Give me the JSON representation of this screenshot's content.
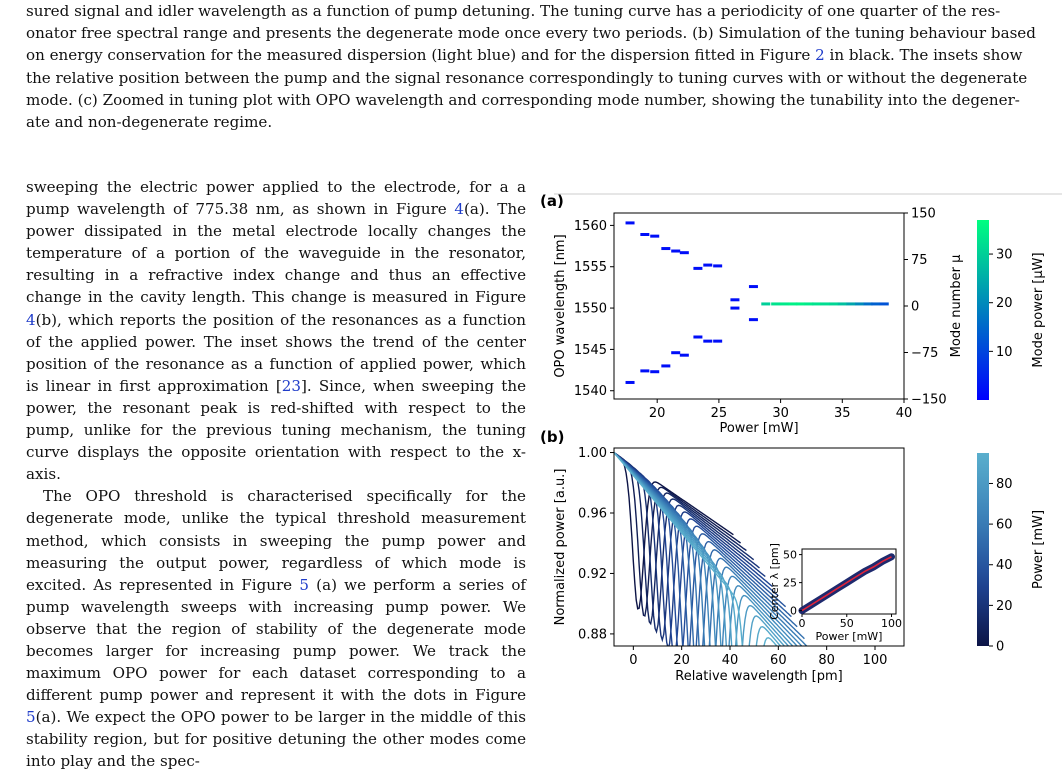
{
  "caption": {
    "line1": "sured signal and idler wavelength as a function of pump detuning. The tuning curve has a periodicity of one quarter of the res-",
    "line2": "onator free spectral range and presents the degenerate mode once every two periods. (b) Simulation of the tuning behaviour based",
    "line3_pre": "on energy conservation for the measured dispersion (light blue) and for the dispersion fitted in Figure ",
    "line3_ref": "2",
    "line3_post": " in black. The insets show",
    "line4": "the relative position between the pump and the signal resonance correspondingly to tuning curves with or without the degenerate",
    "line5": "mode. (c) Zoomed in tuning plot with OPO wavelength and corresponding mode number, showing the tunability into the degener-",
    "line6": "ate and non-degenerate regime."
  },
  "body": {
    "p1_a": "sweeping the electric power applied to the electrode, for a a pump wavelength of 775.38 nm, as shown in Figure ",
    "p1_ref1": "4",
    "p1_b": "(a). The power dissipated in the metal electrode locally changes the temperature of a portion of the waveguide in the resonator, resulting in a refractive index change and thus an effective change in the cavity length. This change is measured in Figure ",
    "p1_ref2": "4",
    "p1_c": "(b), which reports the position of the resonances as a function of the applied power. The inset shows the trend of the center position of the resonance as a function of applied power, which is linear in first approximation [",
    "p1_ref3": "23",
    "p1_d": "]. Since, when sweeping the power, the resonant peak is red-shifted with respect to the pump, unlike for the previous tuning mechanism, the tuning curve displays the opposite orientation with respect to the x-axis.",
    "p2_a": "The OPO threshold is characterised specifically for the degenerate mode, unlike the typical threshold measurement method, which consists in sweeping the pump power and measuring the output power, regardless of which mode is excited. As represented in Figure ",
    "p2_ref1": "5",
    "p2_b": " (a) we perform a series of pump wavelength sweeps with increasing pump power. We observe that the region of stability of the degenerate mode becomes larger for increasing pump power. We track the maximum OPO power for each dataset corresponding to a different pump power and represent it with the dots in Figure ",
    "p2_ref2": "5",
    "p2_c": "(a). We expect the OPO power to be larger in the middle of this stability region, but for positive detuning the other modes come into play and the spec-"
  },
  "figure": {
    "colors": {
      "axis": "#000000",
      "ref": "#1f3cc9"
    },
    "panel_a": {
      "label": "(a)",
      "chart_data": {
        "type": "scatter",
        "xlabel": "Power [mW]",
        "ylabel": "OPO wavelength [nm]",
        "y2label": "Mode number μ",
        "colorbar_label": "Mode power [μW]",
        "xlim": [
          16.5,
          40
        ],
        "ylim": [
          1539,
          1561.5
        ],
        "y2lim": [
          -150,
          150
        ],
        "xticks": [
          "20",
          "25",
          "30",
          "35",
          "40"
        ],
        "yticks": [
          "1540",
          "1545",
          "1550",
          "1555",
          "1560"
        ],
        "y2ticks": [
          "150",
          "75",
          "0",
          "−75",
          "−150"
        ],
        "colorbar_ticks": [
          "10",
          "20",
          "30"
        ],
        "colorbar_range": [
          0,
          37
        ],
        "series": [
          {
            "x": [
              17.8,
              19.0,
              19.8,
              20.7,
              21.5,
              22.2,
              23.3,
              24.1,
              24.9,
              26.3,
              27.8
            ],
            "y": [
              1560.3,
              1558.9,
              1558.7,
              1557.2,
              1556.9,
              1556.7,
              1554.8,
              1555.2,
              1555.1,
              1551.0,
              1552.6
            ],
            "c": 2
          },
          {
            "x": [
              17.8,
              19.0,
              19.8,
              20.7,
              21.5,
              22.2,
              23.3,
              24.1,
              24.9,
              26.3,
              27.8
            ],
            "y": [
              1541.0,
              1542.4,
              1542.3,
              1543.0,
              1544.6,
              1544.3,
              1546.5,
              1546.0,
              1546.0,
              1550.0,
              1548.6
            ],
            "c": 2
          },
          {
            "x": [
              28.8,
              29.6,
              30.3,
              31.0,
              31.6,
              32.3,
              32.9,
              33.6,
              34.3,
              35.0,
              35.7,
              36.4,
              37.1,
              37.7,
              38.4
            ],
            "y": [
              1550.5,
              1550.5,
              1550.5,
              1550.5,
              1550.5,
              1550.5,
              1550.5,
              1550.5,
              1550.5,
              1550.5,
              1550.5,
              1550.5,
              1550.5,
              1550.5,
              1550.5
            ],
            "c": [
              30,
              33,
              34,
              35,
              35,
              34,
              33,
              32,
              31,
              28,
              24,
              20,
              16,
              14,
              12
            ]
          }
        ]
      }
    },
    "panel_b": {
      "label": "(b)",
      "chart_data": {
        "type": "line",
        "xlabel": "Relative wavelength [pm]",
        "ylabel": "Normalized power [a.u.]",
        "colorbar_label": "Power [mW]",
        "xlim": [
          -8,
          112
        ],
        "ylim": [
          0.872,
          1.003
        ],
        "xticks": [
          "0",
          "20",
          "40",
          "60",
          "80",
          "100"
        ],
        "yticks": [
          "1.00",
          "0.96",
          "0.92",
          "0.88"
        ],
        "colorbar_ticks": [
          "80",
          "60",
          "40",
          "20",
          "0"
        ],
        "colorbar_range": [
          0,
          95
        ],
        "dip_center_start": 2,
        "dip_center_end": 49,
        "dip_depth_start": 0.907,
        "dip_depth_end": 0.88,
        "sweep_count": 20,
        "inset": {
          "xlabel": "Power [mW]",
          "ylabel": "Center λ [pm]",
          "xlim": [
            0,
            105
          ],
          "ylim": [
            -3,
            55
          ],
          "xticks": [
            "0",
            "50",
            "100"
          ],
          "yticks": [
            "50",
            "25",
            "0"
          ],
          "x": [
            0,
            10,
            20,
            30,
            40,
            50,
            60,
            70,
            80,
            90,
            100
          ],
          "y": [
            0,
            5,
            10,
            15,
            20,
            25,
            30,
            35,
            39,
            44,
            48
          ]
        }
      }
    }
  }
}
